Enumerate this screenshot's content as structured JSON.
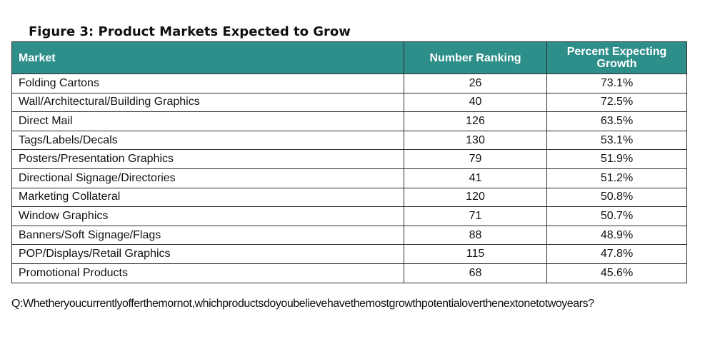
{
  "colors": {
    "header_background": "#2e8f8a",
    "header_text": "#ffffff",
    "border": "#2c2c2c"
  },
  "chart_data": {
    "type": "table",
    "title": "Figure 3: Product Markets Expected to Grow",
    "columns": [
      "Market",
      "Number Ranking",
      "Percent Expecting Growth"
    ],
    "rows": [
      [
        "Folding Cartons",
        "26",
        "73.1%"
      ],
      [
        "Wall/Architectural/Building Graphics",
        "40",
        "72.5%"
      ],
      [
        "Direct Mail",
        "126",
        "63.5%"
      ],
      [
        "Tags/Labels/Decals",
        "130",
        "53.1%"
      ],
      [
        "Posters/Presentation Graphics",
        "79",
        "51.9%"
      ],
      [
        "Directional Signage/Directories",
        "41",
        "51.2%"
      ],
      [
        "Marketing Collateral",
        "120",
        "50.8%"
      ],
      [
        "Window Graphics",
        "71",
        "50.7%"
      ],
      [
        "Banners/Soft Signage/Flags",
        "88",
        "48.9%"
      ],
      [
        "POP/Displays/Retail Graphics",
        "115",
        "47.8%"
      ],
      [
        "Promotional Products",
        "68",
        "45.6%"
      ]
    ],
    "footnote": "Q:Whetheryoucurrentlyofferthemornot,whichproductsdoyoubelievehavethemostgrowthpotentialoverthenextonetotwoyears?"
  }
}
